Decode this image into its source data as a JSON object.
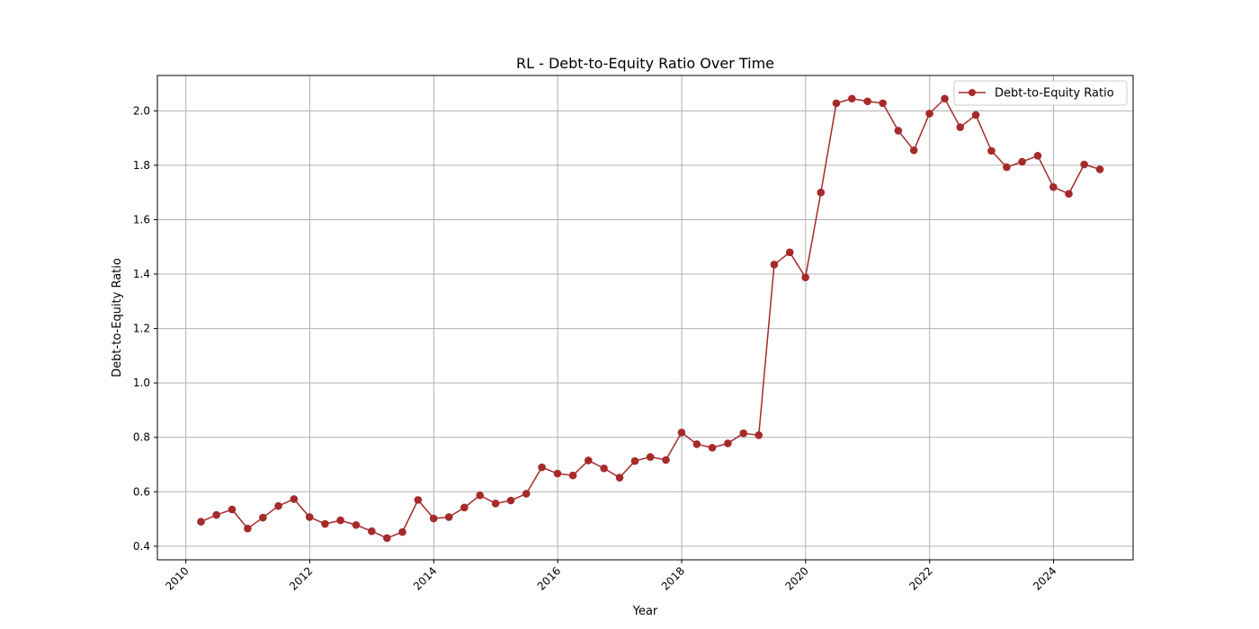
{
  "chart_data": {
    "type": "line",
    "title": "RL - Debt-to-Equity Ratio Over Time",
    "xlabel": "Year",
    "ylabel": "Debt-to-Equity Ratio",
    "x_axis_type": "date",
    "xlim": [
      "2009-07-17",
      "2025-04-14"
    ],
    "ylim": [
      0.35,
      2.13
    ],
    "x_ticks": [
      "2010",
      "2012",
      "2014",
      "2016",
      "2018",
      "2020",
      "2022",
      "2024"
    ],
    "x_tick_rotation": 45,
    "y_ticks": [
      "0.4",
      "0.6",
      "0.8",
      "1.0",
      "1.2",
      "1.4",
      "1.6",
      "1.8",
      "2.0"
    ],
    "grid": true,
    "legend_position": "top-right",
    "series": [
      {
        "name": "Debt-to-Equity Ratio",
        "color": "#a52a2a",
        "marker": "circle",
        "x": [
          "2010-03-31",
          "2010-06-30",
          "2010-09-30",
          "2010-12-31",
          "2011-03-31",
          "2011-06-30",
          "2011-09-30",
          "2011-12-31",
          "2012-03-31",
          "2012-06-30",
          "2012-09-30",
          "2012-12-31",
          "2013-03-31",
          "2013-06-30",
          "2013-09-30",
          "2013-12-31",
          "2014-03-31",
          "2014-06-30",
          "2014-09-30",
          "2014-12-31",
          "2015-03-31",
          "2015-06-30",
          "2015-09-30",
          "2015-12-31",
          "2016-03-31",
          "2016-06-30",
          "2016-09-30",
          "2016-12-31",
          "2017-03-31",
          "2017-06-30",
          "2017-09-30",
          "2017-12-31",
          "2018-03-31",
          "2018-06-30",
          "2018-09-30",
          "2018-12-31",
          "2019-03-31",
          "2019-06-30",
          "2019-09-30",
          "2019-12-31",
          "2020-03-31",
          "2020-06-30",
          "2020-09-30",
          "2020-12-31",
          "2021-03-31",
          "2021-06-30",
          "2021-09-30",
          "2021-12-31",
          "2022-03-31",
          "2022-06-30",
          "2022-09-30",
          "2022-12-31",
          "2023-03-31",
          "2023-06-30",
          "2023-09-30",
          "2023-12-31",
          "2024-03-31",
          "2024-06-30",
          "2024-09-30"
        ],
        "values": [
          0.49,
          0.515,
          0.535,
          0.465,
          0.505,
          0.548,
          0.573,
          0.507,
          0.482,
          0.495,
          0.478,
          0.455,
          0.43,
          0.452,
          0.57,
          0.502,
          0.507,
          0.542,
          0.587,
          0.557,
          0.568,
          0.593,
          0.69,
          0.667,
          0.66,
          0.715,
          0.686,
          0.652,
          0.713,
          0.728,
          0.717,
          0.818,
          0.775,
          0.762,
          0.778,
          0.815,
          0.808,
          1.435,
          1.48,
          1.388,
          1.7,
          2.028,
          2.045,
          2.035,
          2.028,
          1.927,
          1.855,
          1.99,
          2.045,
          1.94,
          1.985,
          1.853,
          1.793,
          1.813,
          1.835,
          1.72,
          1.695,
          1.803,
          1.785
        ]
      }
    ]
  }
}
